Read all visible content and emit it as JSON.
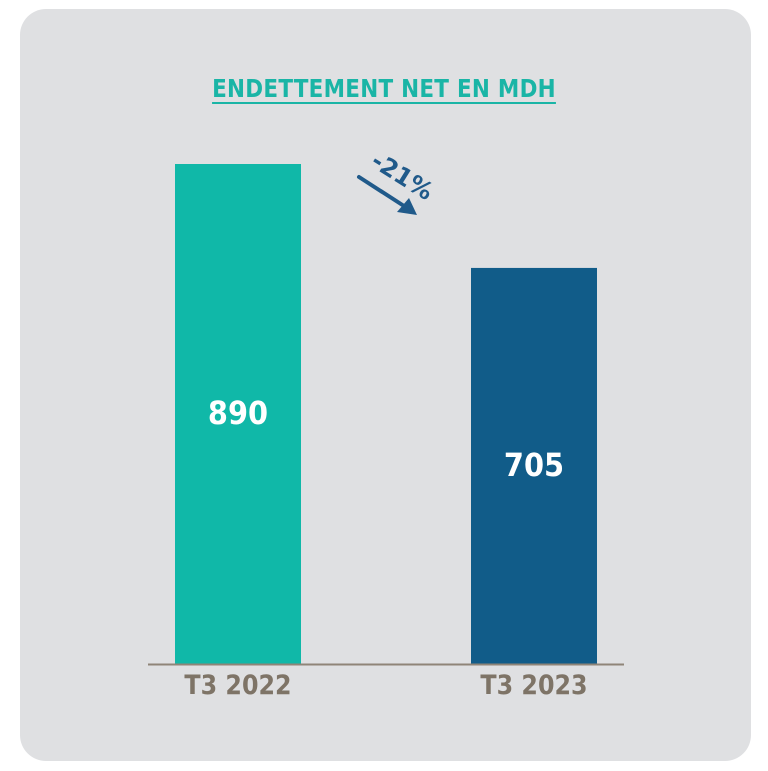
{
  "chart_data": {
    "type": "bar",
    "title": "ENDETTEMENT NET EN MDH",
    "categories": [
      "T3 2022",
      "T3 2023"
    ],
    "values": [
      890,
      705
    ],
    "data_labels": [
      "890",
      "705"
    ],
    "annotation": "-21%",
    "xlabel": "",
    "ylabel": "",
    "ylim": [
      0,
      890
    ],
    "grid": false,
    "legend": "none"
  },
  "colors": {
    "title": "#1ab5a6",
    "bars": [
      "#10b8a8",
      "#115c89"
    ],
    "category_labels": "#7e7467",
    "annotation": "#205a8a",
    "baseline": "#8f8578",
    "background": "#dfe0e2"
  }
}
